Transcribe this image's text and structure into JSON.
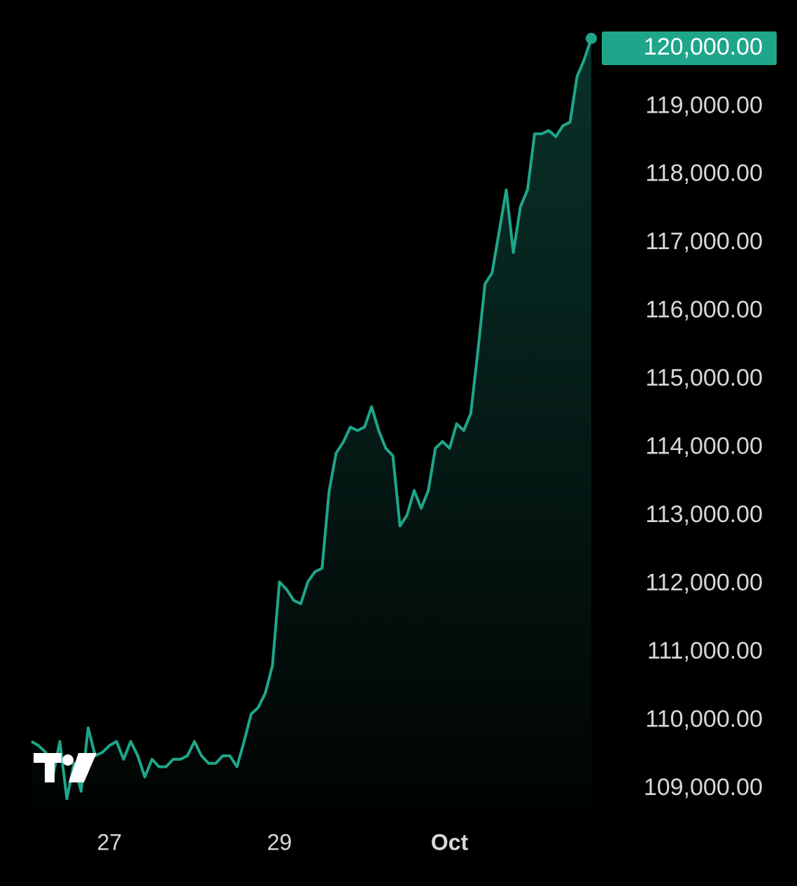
{
  "chart_data": {
    "type": "area",
    "categories": [
      null,
      null,
      null,
      null,
      null,
      null,
      null,
      null,
      null,
      null,
      null,
      "27",
      null,
      null,
      null,
      null,
      null,
      null,
      null,
      null,
      null,
      null,
      null,
      null,
      null,
      null,
      null,
      null,
      null,
      null,
      null,
      null,
      null,
      null,
      null,
      "29",
      null,
      null,
      null,
      null,
      null,
      null,
      null,
      null,
      null,
      null,
      null,
      null,
      null,
      null,
      null,
      null,
      null,
      null,
      null,
      null,
      null,
      null,
      null,
      "Oct",
      null,
      null,
      null,
      null,
      null,
      null,
      null,
      null,
      null,
      null,
      null,
      null,
      null,
      null,
      null,
      null,
      null,
      null,
      null,
      null
    ],
    "values": [
      109690,
      109630,
      109530,
      109170,
      109690,
      108850,
      109370,
      108960,
      109890,
      109480,
      109530,
      109630,
      109690,
      109430,
      109690,
      109480,
      109170,
      109430,
      109320,
      109320,
      109430,
      109430,
      109480,
      109690,
      109480,
      109370,
      109370,
      109480,
      109480,
      109320,
      109690,
      110090,
      110190,
      110400,
      110800,
      112030,
      111920,
      111760,
      111710,
      112030,
      112180,
      112230,
      113360,
      113920,
      114080,
      114300,
      114250,
      114300,
      114600,
      114250,
      113990,
      113880,
      112850,
      113010,
      113370,
      113110,
      113370,
      113990,
      114090,
      113990,
      114350,
      114250,
      114500,
      115420,
      116400,
      116560,
      117170,
      117780,
      116860,
      117530,
      117780,
      118600,
      118600,
      118650,
      118560,
      118720,
      118770,
      119440,
      119690,
      120000
    ],
    "color": "#1fa68a",
    "ylim": [
      108700,
      120450
    ],
    "yticks": [
      {
        "value": 109000,
        "label": "109,000.00"
      },
      {
        "value": 110000,
        "label": "110,000.00"
      },
      {
        "value": 111000,
        "label": "111,000.00"
      },
      {
        "value": 112000,
        "label": "112,000.00"
      },
      {
        "value": 113000,
        "label": "113,000.00"
      },
      {
        "value": 114000,
        "label": "114,000.00"
      },
      {
        "value": 115000,
        "label": "115,000.00"
      },
      {
        "value": 116000,
        "label": "116,000.00"
      },
      {
        "value": 117000,
        "label": "117,000.00"
      },
      {
        "value": 118000,
        "label": "118,000.00"
      },
      {
        "value": 119000,
        "label": "119,000.00"
      }
    ],
    "current_price": {
      "value": 120000,
      "label": "120,000.00"
    }
  }
}
